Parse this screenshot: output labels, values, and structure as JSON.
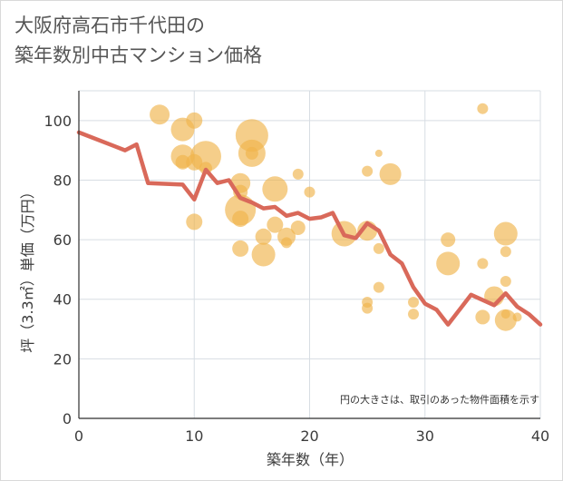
{
  "title_line1": "大阪府高石市千代田の",
  "title_line2": "築年数別中古マンション価格",
  "chart_data": {
    "type": "scatter",
    "xlabel": "築年数（年）",
    "ylabel": "坪（3.3㎡）単価（万円）",
    "xlim": [
      0,
      40
    ],
    "ylim": [
      0,
      110
    ],
    "xticks": [
      "0",
      "10",
      "20",
      "30",
      "40"
    ],
    "yticks": [
      "0",
      "20",
      "40",
      "60",
      "80",
      "100"
    ],
    "grid": true,
    "annotation": "円の大きさは、取引のあった物件面積を示す",
    "colors": {
      "bubble": "#f0b44b",
      "line": "#d9695a"
    },
    "bubbles": [
      {
        "x": 7,
        "y": 102,
        "r": 11
      },
      {
        "x": 9,
        "y": 97,
        "r": 13
      },
      {
        "x": 10,
        "y": 100,
        "r": 9
      },
      {
        "x": 9,
        "y": 88,
        "r": 13
      },
      {
        "x": 9,
        "y": 86,
        "r": 8
      },
      {
        "x": 10,
        "y": 86,
        "r": 9
      },
      {
        "x": 11,
        "y": 88,
        "r": 17
      },
      {
        "x": 11,
        "y": 84,
        "r": 7
      },
      {
        "x": 10,
        "y": 66,
        "r": 9
      },
      {
        "x": 14,
        "y": 79,
        "r": 11
      },
      {
        "x": 14,
        "y": 76,
        "r": 8
      },
      {
        "x": 14,
        "y": 70,
        "r": 17
      },
      {
        "x": 14,
        "y": 67,
        "r": 9
      },
      {
        "x": 14,
        "y": 57,
        "r": 9
      },
      {
        "x": 15,
        "y": 95,
        "r": 18
      },
      {
        "x": 15,
        "y": 89,
        "r": 15
      },
      {
        "x": 15,
        "y": 89,
        "r": 7
      },
      {
        "x": 17,
        "y": 77,
        "r": 14
      },
      {
        "x": 17,
        "y": 65,
        "r": 9
      },
      {
        "x": 16,
        "y": 61,
        "r": 9
      },
      {
        "x": 16,
        "y": 55,
        "r": 13
      },
      {
        "x": 18,
        "y": 61,
        "r": 10
      },
      {
        "x": 18,
        "y": 59,
        "r": 6
      },
      {
        "x": 19,
        "y": 82,
        "r": 6
      },
      {
        "x": 19,
        "y": 64,
        "r": 8
      },
      {
        "x": 20,
        "y": 76,
        "r": 6
      },
      {
        "x": 23,
        "y": 62,
        "r": 14
      },
      {
        "x": 25,
        "y": 83,
        "r": 6
      },
      {
        "x": 25,
        "y": 63,
        "r": 11
      },
      {
        "x": 25,
        "y": 39,
        "r": 6
      },
      {
        "x": 25,
        "y": 37,
        "r": 6
      },
      {
        "x": 26,
        "y": 89,
        "r": 4
      },
      {
        "x": 26,
        "y": 57,
        "r": 6
      },
      {
        "x": 26,
        "y": 44,
        "r": 6
      },
      {
        "x": 27,
        "y": 82,
        "r": 12
      },
      {
        "x": 29,
        "y": 39,
        "r": 6
      },
      {
        "x": 29,
        "y": 35,
        "r": 6
      },
      {
        "x": 32,
        "y": 60,
        "r": 8
      },
      {
        "x": 32,
        "y": 52,
        "r": 13
      },
      {
        "x": 35,
        "y": 104,
        "r": 6
      },
      {
        "x": 35,
        "y": 52,
        "r": 6
      },
      {
        "x": 35,
        "y": 34,
        "r": 8
      },
      {
        "x": 36,
        "y": 41,
        "r": 11
      },
      {
        "x": 37,
        "y": 62,
        "r": 13
      },
      {
        "x": 37,
        "y": 56,
        "r": 6
      },
      {
        "x": 37,
        "y": 46,
        "r": 6
      },
      {
        "x": 37,
        "y": 33,
        "r": 12
      },
      {
        "x": 37,
        "y": 35,
        "r": 5
      },
      {
        "x": 38,
        "y": 34,
        "r": 5
      }
    ],
    "line": {
      "x": [
        0,
        4,
        5,
        6,
        9,
        10,
        11,
        12,
        13,
        14,
        15,
        16,
        17,
        18,
        19,
        20,
        21,
        22,
        23,
        24,
        25,
        26,
        27,
        28,
        29,
        30,
        31,
        32,
        34,
        36,
        37,
        38,
        39,
        40
      ],
      "y": [
        96,
        90,
        92,
        79,
        78.5,
        73.5,
        83.5,
        79,
        80,
        74,
        72.5,
        70.5,
        71,
        68,
        69,
        67,
        67.5,
        69,
        61.5,
        60.5,
        65.5,
        63,
        55,
        52,
        44,
        38.5,
        36.5,
        31.5,
        41.5,
        38,
        42,
        37.5,
        35,
        31.5
      ]
    }
  }
}
